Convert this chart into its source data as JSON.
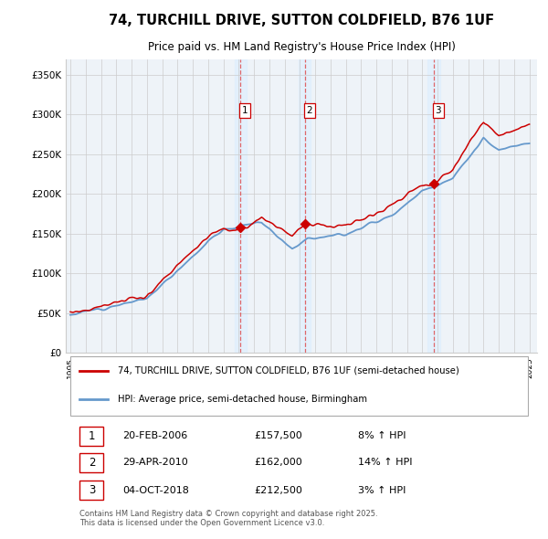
{
  "title": "74, TURCHILL DRIVE, SUTTON COLDFIELD, B76 1UF",
  "subtitle": "Price paid vs. HM Land Registry's House Price Index (HPI)",
  "ylabel_ticks": [
    "£0",
    "£50K",
    "£100K",
    "£150K",
    "£200K",
    "£250K",
    "£300K",
    "£350K"
  ],
  "ytick_values": [
    0,
    50000,
    100000,
    150000,
    200000,
    250000,
    300000,
    350000
  ],
  "ylim": [
    0,
    370000
  ],
  "sale_prices": [
    157500,
    162000,
    212500
  ],
  "sale_labels": [
    "1",
    "2",
    "3"
  ],
  "sale_hpi_pct": [
    "8% ↑ HPI",
    "14% ↑ HPI",
    "3% ↑ HPI"
  ],
  "sale_dates_str": [
    "20-FEB-2006",
    "29-APR-2010",
    "04-OCT-2018"
  ],
  "sale_prices_str": [
    "£157,500",
    "£162,000",
    "£212,500"
  ],
  "sale_decimal": [
    2006.12,
    2010.32,
    2018.75
  ],
  "legend_label_red": "74, TURCHILL DRIVE, SUTTON COLDFIELD, B76 1UF (semi-detached house)",
  "legend_label_blue": "HPI: Average price, semi-detached house, Birmingham",
  "footer": "Contains HM Land Registry data © Crown copyright and database right 2025.\nThis data is licensed under the Open Government Licence v3.0.",
  "red_color": "#cc0000",
  "blue_color": "#6699cc",
  "blue_fill_color": "#ddeeff",
  "grid_color": "#cccccc",
  "vline_color": "#dd4444",
  "background_color": "#ffffff",
  "plot_bg_color": "#eef3f8"
}
